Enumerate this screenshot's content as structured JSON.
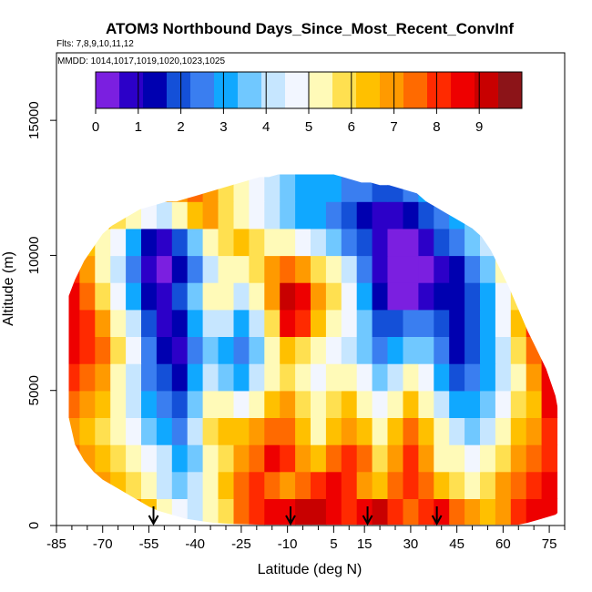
{
  "chart_data": {
    "type": "heatmap",
    "title": "ATOM3 Northbound Days_Since_Most_Recent_ConvInf",
    "subtitle_flights": "Flts: 7,8,9,10,11,12",
    "subtitle_dates": "MMDD: 1014,1017,1019,1020,1023,1025",
    "xlabel": "Latitude (deg N)",
    "ylabel": "Altitude (m)",
    "xlim": [
      -85,
      80
    ],
    "ylim": [
      0,
      17500
    ],
    "x_ticks_major": [
      -85,
      -70,
      -55,
      -40,
      -25,
      -10,
      5,
      15,
      30,
      45,
      60,
      75
    ],
    "x_ticks_minor": [
      -80,
      -75,
      -65,
      -60,
      -50,
      -45,
      -35,
      -30,
      -20,
      -15,
      -5,
      0,
      10,
      20,
      25,
      35,
      40,
      50,
      55,
      65,
      70,
      80
    ],
    "y_ticks": [
      0,
      5000,
      10000,
      15000
    ],
    "y_tick_labels": [
      "0",
      "5000",
      "10000",
      "15000"
    ],
    "colorbar": {
      "range": [
        0,
        10
      ],
      "tick_values": [
        0,
        1,
        2,
        3,
        4,
        5,
        6,
        7,
        8,
        9
      ],
      "tick_labels": [
        "0",
        "1",
        "2",
        "3",
        "4",
        "5",
        "6",
        "7",
        "8",
        "9"
      ],
      "colors": [
        "#7b1fe0",
        "#2c00c8",
        "#0000b0",
        "#1450d8",
        "#3a7ef0",
        "#10a8ff",
        "#70c8ff",
        "#c6e6ff",
        "#f2f6ff",
        "#fffab8",
        "#ffe050",
        "#ffc000",
        "#ff9a00",
        "#ff6a00",
        "#ff2a00",
        "#ee0000",
        "#c80000",
        "#8c1418"
      ]
    },
    "profile_markers_latitude": [
      -53.5,
      -9,
      16,
      38.5
    ],
    "altitude_envelope": {
      "latitude": [
        -81,
        -79,
        -76,
        -73,
        -70,
        -67,
        -64,
        -61,
        -58,
        -55,
        -52,
        -49,
        -46,
        -43,
        -40,
        -37,
        -34,
        -31,
        -28,
        -25,
        -22,
        -19,
        -16,
        -13,
        -10,
        -7,
        -4,
        -1,
        2,
        5,
        8,
        11,
        14,
        17,
        20,
        23,
        26,
        29,
        32,
        35,
        38,
        41,
        44,
        47,
        50,
        53,
        56,
        59,
        62,
        65,
        68,
        71,
        74,
        77,
        78
      ],
      "bottom": [
        4000,
        3000,
        2400,
        2000,
        1700,
        1500,
        1300,
        1100,
        900,
        700,
        550,
        450,
        350,
        250,
        200,
        150,
        100,
        80,
        60,
        50,
        40,
        30,
        30,
        30,
        30,
        30,
        30,
        30,
        30,
        30,
        30,
        30,
        30,
        30,
        30,
        30,
        30,
        30,
        30,
        30,
        30,
        30,
        30,
        30,
        30,
        30,
        30,
        30,
        30,
        30,
        100,
        200,
        300,
        400,
        500
      ],
      "top": [
        8500,
        9100,
        9800,
        10300,
        10800,
        11100,
        11300,
        11500,
        11700,
        11800,
        11900,
        12000,
        12000,
        12100,
        12200,
        12300,
        12400,
        12500,
        12600,
        12700,
        12800,
        12900,
        12900,
        13000,
        13100,
        13200,
        13300,
        13200,
        13100,
        13000,
        12900,
        12800,
        12700,
        12700,
        12600,
        12600,
        12500,
        12400,
        12300,
        12000,
        11800,
        11600,
        11400,
        11200,
        11000,
        10700,
        10200,
        9500,
        8800,
        8000,
        7200,
        6500,
        5800,
        4800,
        4200
      ]
    },
    "value_field": {
      "altitude_levels": [
        500,
        1500,
        2500,
        3500,
        4500,
        5500,
        6500,
        7500,
        8500,
        9500,
        10500,
        11500,
        12500
      ],
      "latitude_bins": [
        -80,
        -75,
        -70,
        -65,
        -60,
        -55,
        -50,
        -45,
        -40,
        -35,
        -30,
        -25,
        -20,
        -15,
        -10,
        -5,
        0,
        5,
        10,
        15,
        20,
        25,
        30,
        35,
        40,
        45,
        50,
        55,
        60,
        65,
        70,
        75
      ],
      "days": [
        [
          8.5,
          8.0,
          7.5,
          7.5,
          7.0,
          6.5,
          5.5,
          4.5,
          4.0,
          5.0,
          6.0,
          7.5,
          8.0,
          8.5,
          8.5,
          9.0,
          9.0,
          8.5,
          8.0,
          8.5,
          9.0,
          8.0,
          7.5,
          8.0,
          8.5,
          7.5,
          7.0,
          6.5,
          7.0,
          8.0,
          8.5,
          8.5
        ],
        [
          8.0,
          7.5,
          7.0,
          6.5,
          6.0,
          5.0,
          4.0,
          3.5,
          4.0,
          5.0,
          6.5,
          7.5,
          8.0,
          7.5,
          7.0,
          7.5,
          8.0,
          8.5,
          8.0,
          7.0,
          6.5,
          7.5,
          8.0,
          7.5,
          6.5,
          6.0,
          5.5,
          6.0,
          7.0,
          7.5,
          8.0,
          8.5
        ],
        [
          7.5,
          7.0,
          6.5,
          6.0,
          5.0,
          4.5,
          4.0,
          3.0,
          3.5,
          5.5,
          6.0,
          7.0,
          7.5,
          8.5,
          8.0,
          7.0,
          6.5,
          7.5,
          8.0,
          7.5,
          6.0,
          7.0,
          8.0,
          7.0,
          5.5,
          5.0,
          4.5,
          5.0,
          6.0,
          7.0,
          7.5,
          8.0
        ],
        [
          7.0,
          6.5,
          6.0,
          5.5,
          4.5,
          3.5,
          3.0,
          2.5,
          4.0,
          6.0,
          6.5,
          6.5,
          7.0,
          7.5,
          7.5,
          6.5,
          5.5,
          6.5,
          7.0,
          6.5,
          5.5,
          6.5,
          7.5,
          6.5,
          5.0,
          4.0,
          3.5,
          4.0,
          5.0,
          6.5,
          7.0,
          8.0
        ],
        [
          7.5,
          7.0,
          6.5,
          5.0,
          4.0,
          3.0,
          2.5,
          2.0,
          3.5,
          5.0,
          5.0,
          4.5,
          5.5,
          6.5,
          7.0,
          6.0,
          5.0,
          6.0,
          6.5,
          5.5,
          4.5,
          5.5,
          6.5,
          5.5,
          4.0,
          3.0,
          3.0,
          3.5,
          4.5,
          6.0,
          6.5,
          8.5
        ],
        [
          8.0,
          7.5,
          7.0,
          5.5,
          4.0,
          2.5,
          2.0,
          1.5,
          3.0,
          4.0,
          3.5,
          3.0,
          4.0,
          5.5,
          6.0,
          5.5,
          4.5,
          5.0,
          5.5,
          4.5,
          3.5,
          4.0,
          5.0,
          4.5,
          3.0,
          2.0,
          2.5,
          3.0,
          4.0,
          5.5,
          7.0,
          8.5
        ],
        [
          8.5,
          8.0,
          7.5,
          6.0,
          4.5,
          2.5,
          1.5,
          1.0,
          2.5,
          3.5,
          3.0,
          2.5,
          3.5,
          5.0,
          6.5,
          6.0,
          5.0,
          4.5,
          4.0,
          3.5,
          2.5,
          3.0,
          3.5,
          3.5,
          2.5,
          1.5,
          2.0,
          3.0,
          4.0,
          6.0,
          7.5,
          8.5
        ],
        [
          8.5,
          8.0,
          7.0,
          5.5,
          4.0,
          2.0,
          1.0,
          1.5,
          3.0,
          4.0,
          4.0,
          3.0,
          4.0,
          6.0,
          8.5,
          8.0,
          6.5,
          5.5,
          4.5,
          3.5,
          2.0,
          2.0,
          2.5,
          2.5,
          2.0,
          1.5,
          2.0,
          3.0,
          4.5,
          6.5,
          8.0,
          8.5
        ],
        [
          8.5,
          7.5,
          6.0,
          4.5,
          3.0,
          1.5,
          1.0,
          2.0,
          3.5,
          5.0,
          5.0,
          4.0,
          5.0,
          7.0,
          9.0,
          8.5,
          7.0,
          6.0,
          4.5,
          3.0,
          1.5,
          0.5,
          0.5,
          1.0,
          1.5,
          1.5,
          2.0,
          3.0,
          4.5,
          6.0,
          7.0,
          7.5
        ],
        [
          8.0,
          7.0,
          5.5,
          4.0,
          2.5,
          1.0,
          0.5,
          1.5,
          2.5,
          4.0,
          5.5,
          5.0,
          6.0,
          7.0,
          7.5,
          7.0,
          6.0,
          5.0,
          4.0,
          2.5,
          1.0,
          0.5,
          0.5,
          0.5,
          1.0,
          1.5,
          2.5,
          3.5,
          5.0,
          6.0,
          6.5,
          7.0
        ],
        [
          7.5,
          6.5,
          5.5,
          4.5,
          3.0,
          1.5,
          1.0,
          2.0,
          3.5,
          5.0,
          6.0,
          6.5,
          6.0,
          5.5,
          5.0,
          4.5,
          4.0,
          3.5,
          2.5,
          2.0,
          1.0,
          0.5,
          0.5,
          1.0,
          2.0,
          2.5,
          3.5,
          4.0,
          5.0,
          5.5,
          6.0,
          6.5
        ],
        [
          7.0,
          7.0,
          6.5,
          6.0,
          5.5,
          4.5,
          4.0,
          5.0,
          6.5,
          7.0,
          6.0,
          5.0,
          4.5,
          4.0,
          3.5,
          3.0,
          3.0,
          2.5,
          2.0,
          1.5,
          1.0,
          1.0,
          1.5,
          2.0,
          2.5,
          3.0,
          3.5,
          4.0,
          4.5,
          5.0,
          5.5,
          6.0
        ],
        [
          7.0,
          7.0,
          7.0,
          7.0,
          7.0,
          7.0,
          7.0,
          7.0,
          7.5,
          7.0,
          6.0,
          5.0,
          4.5,
          4.0,
          3.5,
          3.0,
          3.0,
          3.0,
          2.5,
          2.5,
          2.0,
          2.0,
          2.5,
          3.0,
          3.0,
          3.0,
          3.5,
          4.0,
          4.5,
          5.0,
          5.5,
          6.0
        ]
      ]
    }
  }
}
